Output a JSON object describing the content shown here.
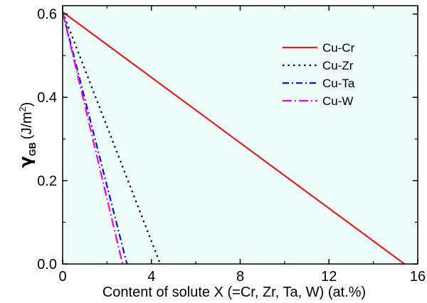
{
  "chart_data": {
    "type": "line",
    "title": "",
    "xlabel": "Content of solute X (=Cr, Zr, Ta, W) (at.%)",
    "ylabel": {
      "symbol": "γ",
      "subscript": "GB",
      "unit_open": "(J/m",
      "unit_power": "2",
      "unit_close": ")"
    },
    "xlim": [
      0,
      16
    ],
    "ylim": [
      0,
      0.62
    ],
    "x_ticks": [
      0,
      4,
      8,
      12,
      16
    ],
    "x_tick_labels": [
      "0",
      "4",
      "8",
      "12",
      "16"
    ],
    "y_ticks": [
      0.0,
      0.2,
      0.4,
      0.6
    ],
    "y_tick_labels": [
      "0.0",
      "0.2",
      "0.4",
      "0.6"
    ],
    "grid": false,
    "legend_position": "top-right",
    "plot_background": "#eefcfa",
    "series": [
      {
        "name": "Cu-Cr",
        "color": "#e02020",
        "style": "solid",
        "x": [
          0,
          15.4
        ],
        "y": [
          0.605,
          0
        ]
      },
      {
        "name": "Cu-Zr",
        "color": "#000000",
        "style": "dot",
        "x": [
          0,
          4.4
        ],
        "y": [
          0.605,
          0
        ]
      },
      {
        "name": "Cu-Ta",
        "color": "#1010cc",
        "style": "dashdot",
        "x": [
          0,
          2.9
        ],
        "y": [
          0.605,
          0
        ]
      },
      {
        "name": "Cu-W",
        "color": "#ee00ee",
        "style": "dashdotlong",
        "x": [
          0,
          2.7
        ],
        "y": [
          0.605,
          0
        ]
      }
    ]
  }
}
